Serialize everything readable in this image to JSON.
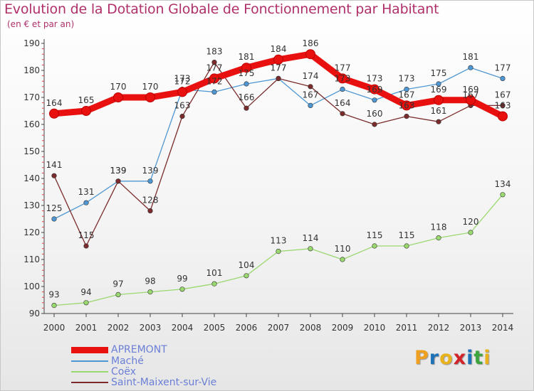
{
  "header": {
    "title": "Evolution de la Dotation Globale de Fonctionnement par Habitant",
    "subtitle": "(en € et par an)"
  },
  "logo": {
    "text": "Proxiti",
    "letters": [
      "P",
      "r",
      "o",
      "x",
      "i",
      "t",
      "i"
    ],
    "colors": [
      "#f0a020",
      "#1e73b8",
      "#e8b21c",
      "#d2232a",
      "#1e73b8",
      "#3ea53e",
      "#e8b21c"
    ]
  },
  "chart_data": {
    "type": "line",
    "title": "Evolution de la Dotation Globale de Fonctionnement par Habitant",
    "subtitle": "(en € et par an)",
    "categories": [
      "2000",
      "2001",
      "2002",
      "2003",
      "2004",
      "2005",
      "2006",
      "2007",
      "2008",
      "2009",
      "2010",
      "2011",
      "2012",
      "2013",
      "2014"
    ],
    "ylim": [
      90,
      190
    ],
    "yticks": [
      90,
      100,
      110,
      120,
      130,
      140,
      150,
      160,
      170,
      180,
      190
    ],
    "grid": false,
    "legend_position": "bottom-left",
    "series": [
      {
        "name": "APREMONT",
        "color": "#e8110f",
        "values": [
          164,
          165,
          170,
          170,
          172,
          177,
          181,
          184,
          186,
          177,
          173,
          167,
          169,
          169,
          163
        ],
        "labels": [
          "164",
          "165",
          "170",
          "170",
          "172",
          "177",
          "181",
          "184",
          "186",
          "177",
          "173",
          "167",
          "169",
          "169",
          "163"
        ]
      },
      {
        "name": "Maché",
        "color": "#4f97d3",
        "values": [
          125,
          131,
          139,
          139,
          173,
          172,
          175,
          177,
          167,
          173,
          169,
          173,
          175,
          181,
          177
        ],
        "labels": [
          "125",
          "131",
          "139",
          "139",
          "173",
          "172",
          "175",
          "177",
          "167",
          "173",
          "169",
          "173",
          "175",
          "181",
          "177"
        ]
      },
      {
        "name": "Coëx",
        "color": "#9ad870",
        "values": [
          93,
          94,
          97,
          98,
          99,
          101,
          104,
          113,
          114,
          110,
          115,
          115,
          118,
          120,
          134
        ],
        "labels": [
          "93",
          "94",
          "97",
          "98",
          "99",
          "101",
          "104",
          "113",
          "114",
          "110",
          "115",
          "115",
          "118",
          "120",
          "134"
        ]
      },
      {
        "name": "Saint-Maixent-sur-Vie",
        "color": "#7b2b2b",
        "values": [
          141,
          115,
          139,
          128,
          163,
          183,
          166,
          177,
          174,
          164,
          160,
          163,
          161,
          167,
          167
        ],
        "labels": [
          "141",
          "115",
          "139",
          "128",
          "163",
          "183",
          "166",
          "177",
          "174",
          "164",
          "160",
          "163",
          "161",
          "167",
          "167"
        ]
      }
    ]
  }
}
